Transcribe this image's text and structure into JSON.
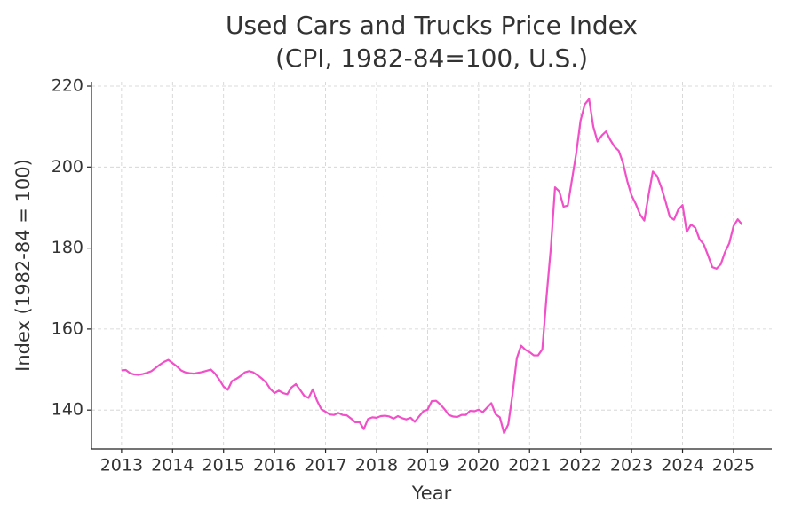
{
  "chart_data": {
    "type": "line",
    "title": "Used Cars and Trucks Price Index",
    "subtitle": "(CPI, 1982-84=100, U.S.)",
    "x_label": "Year",
    "y_label": "Index (1982-84 = 100)",
    "x": [
      2013,
      2013.083,
      2013.167,
      2013.25,
      2013.333,
      2013.417,
      2013.5,
      2013.583,
      2013.667,
      2013.75,
      2013.833,
      2013.917,
      2014,
      2014.083,
      2014.167,
      2014.25,
      2014.333,
      2014.417,
      2014.5,
      2014.583,
      2014.667,
      2014.75,
      2014.833,
      2014.917,
      2015,
      2015.083,
      2015.167,
      2015.25,
      2015.333,
      2015.417,
      2015.5,
      2015.583,
      2015.667,
      2015.75,
      2015.833,
      2015.917,
      2016,
      2016.083,
      2016.167,
      2016.25,
      2016.333,
      2016.417,
      2016.5,
      2016.583,
      2016.667,
      2016.75,
      2016.833,
      2016.917,
      2017,
      2017.083,
      2017.167,
      2017.25,
      2017.333,
      2017.417,
      2017.5,
      2017.583,
      2017.667,
      2017.75,
      2017.833,
      2017.917,
      2018,
      2018.083,
      2018.167,
      2018.25,
      2018.333,
      2018.417,
      2018.5,
      2018.583,
      2018.667,
      2018.75,
      2018.833,
      2018.917,
      2019,
      2019.083,
      2019.167,
      2019.25,
      2019.333,
      2019.417,
      2019.5,
      2019.583,
      2019.667,
      2019.75,
      2019.833,
      2019.917,
      2020,
      2020.083,
      2020.167,
      2020.25,
      2020.333,
      2020.417,
      2020.5,
      2020.583,
      2020.667,
      2020.75,
      2020.833,
      2020.917,
      2021,
      2021.083,
      2021.167,
      2021.25,
      2021.333,
      2021.417,
      2021.5,
      2021.583,
      2021.667,
      2021.75,
      2021.833,
      2021.917,
      2022,
      2022.083,
      2022.167,
      2022.25,
      2022.333,
      2022.417,
      2022.5,
      2022.583,
      2022.667,
      2022.75,
      2022.833,
      2022.917,
      2023,
      2023.083,
      2023.167,
      2023.25,
      2023.333,
      2023.417,
      2023.5,
      2023.583,
      2023.667,
      2023.75,
      2023.833,
      2023.917,
      2024,
      2024.083,
      2024.167,
      2024.25,
      2024.333,
      2024.417,
      2024.5,
      2024.583,
      2024.667,
      2024.75,
      2024.833,
      2024.917,
      2025,
      2025.083,
      2025.167
    ],
    "series": [
      {
        "name": "Used Cars and Trucks",
        "color": "#f050c8",
        "values": [
          149.8,
          149.9,
          149.1,
          148.8,
          148.7,
          148.9,
          149.2,
          149.6,
          150.4,
          151.2,
          151.9,
          152.4,
          151.6,
          150.8,
          149.8,
          149.3,
          149.1,
          149.0,
          149.2,
          149.4,
          149.7,
          150.0,
          149.0,
          147.5,
          145.8,
          145.0,
          147.2,
          147.7,
          148.4,
          149.3,
          149.6,
          149.3,
          148.6,
          147.8,
          146.8,
          145.2,
          144.2,
          144.8,
          144.2,
          143.9,
          145.6,
          146.4,
          145.0,
          143.5,
          143.0,
          145.1,
          142.3,
          140.2,
          139.6,
          138.9,
          138.8,
          139.3,
          138.8,
          138.7,
          137.9,
          137.0,
          137.0,
          135.3,
          137.8,
          138.2,
          138.1,
          138.5,
          138.6,
          138.4,
          137.9,
          138.5,
          138.0,
          137.7,
          138.1,
          137.1,
          138.4,
          139.7,
          140.1,
          142.2,
          142.3,
          141.4,
          140.2,
          138.8,
          138.4,
          138.3,
          138.8,
          138.8,
          139.8,
          139.7,
          140.1,
          139.5,
          140.6,
          141.7,
          139.0,
          138.2,
          134.3,
          136.5,
          144.0,
          152.8,
          155.9,
          154.9,
          154.3,
          153.5,
          153.5,
          155.0,
          168.0,
          180.0,
          195.0,
          194.0,
          190.2,
          190.5,
          197.0,
          203.5,
          211.5,
          215.5,
          216.8,
          210.0,
          206.3,
          207.8,
          208.8,
          206.7,
          205.0,
          204.0,
          201.0,
          196.5,
          193.0,
          190.9,
          188.3,
          186.8,
          193.0,
          198.9,
          197.8,
          195.0,
          191.5,
          187.7,
          187.0,
          189.5,
          190.6,
          184.0,
          185.8,
          185.0,
          182.2,
          180.9,
          178.2,
          175.3,
          174.9,
          176.0,
          179.0,
          181.2,
          185.4,
          187.1,
          185.8
        ]
      }
    ],
    "xlim": [
      2012.41,
      2025.75
    ],
    "ylim": [
      130.4,
      221.1
    ],
    "xticks": [
      2013,
      2014,
      2015,
      2016,
      2017,
      2018,
      2019,
      2020,
      2021,
      2022,
      2023,
      2024,
      2025
    ],
    "yticks": [
      140,
      160,
      180,
      200,
      220
    ],
    "grid": true
  }
}
